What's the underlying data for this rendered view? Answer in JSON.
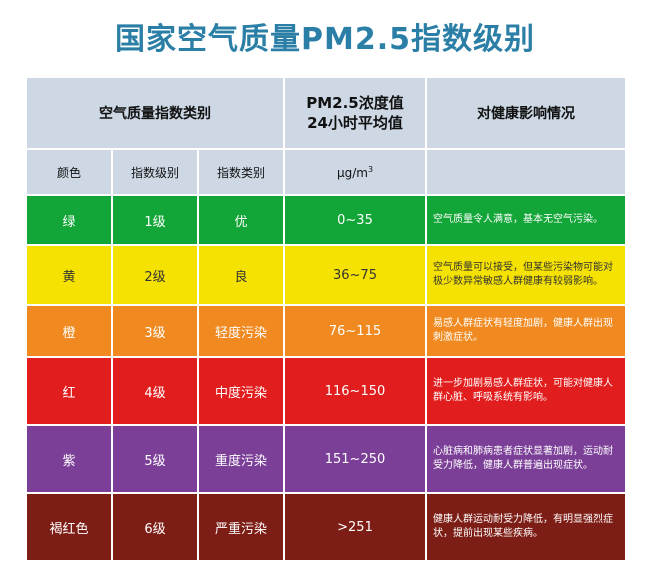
{
  "title": "国家空气质量PM2.5指数级别",
  "header": {
    "category_group": "空气质量指数类别",
    "pm_line1": "PM2.5浓度值",
    "pm_line2": "24小时平均值",
    "health": "对健康影响情况",
    "col_color": "颜色",
    "col_level": "指数级别",
    "col_type": "指数类别",
    "unit_base": "μg/m",
    "unit_sup": "3"
  },
  "rows": [
    {
      "color_name": "绿",
      "level": "1级",
      "category": "优",
      "range": "0~35",
      "health": "空气质量令人满意，基本无空气污染。",
      "bg": "#12a537"
    },
    {
      "color_name": "黄",
      "level": "2级",
      "category": "良",
      "range": "36~75",
      "health": "空气质量可以接受，但某些污染物可能对极少数异常敏感人群健康有较弱影响。",
      "bg": "#f5e200"
    },
    {
      "color_name": "橙",
      "level": "3级",
      "category": "轻度污染",
      "range": "76~115",
      "health": "易感人群症状有轻度加剧，健康人群出现刺激症状。",
      "bg": "#f08a20"
    },
    {
      "color_name": "红",
      "level": "4级",
      "category": "中度污染",
      "range": "116~150",
      "health": "进一步加剧易感人群症状，可能对健康人群心脏、呼吸系统有影响。",
      "bg": "#e21d1d"
    },
    {
      "color_name": "紫",
      "level": "5级",
      "category": "重度污染",
      "range": "151~250",
      "health": "心脏病和肺病患者症状显著加剧，运动耐受力降低，健康人群普遍出现症状。",
      "bg": "#7b3f98"
    },
    {
      "color_name": "褐红色",
      "level": "6级",
      "category": "严重污染",
      "range": ">251",
      "health": "健康人群运动耐受力降低，有明显强烈症状，提前出现某些疾病。",
      "bg": "#7d1e16"
    }
  ]
}
